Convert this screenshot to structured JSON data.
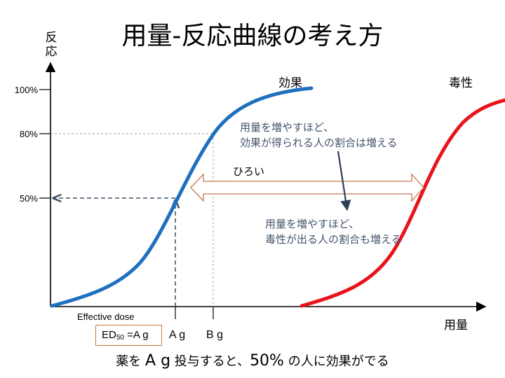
{
  "title": "用量-反応曲線の考え方",
  "axes": {
    "y_label": "反応",
    "x_label": "用量",
    "y_ticks": [
      "100%",
      "80%",
      "50%"
    ]
  },
  "curves": {
    "effect_label": "効果",
    "effect_color": "#1f6fbf",
    "toxicity_label": "毒性",
    "toxicity_color": "#e8141b"
  },
  "annotations": {
    "effect_note": "用量を増やすほど、\n効果が得られる人の割合は増える",
    "toxicity_note": "用量を増やすほど、\n毒性が出る人の割合も増える",
    "wide_label": "ひろい",
    "effective_dose": "Effective dose",
    "ed50_prefix": "ED",
    "ed50_sub": "50",
    "ed50_suffix": " =A g",
    "dose_a": "A g",
    "dose_b": "B g"
  },
  "footer": {
    "part1": "薬を ",
    "part2": "A g",
    "part3": " 投与すると、",
    "part4": "50%",
    "part5": " の人に効果がでる"
  },
  "chart_data": {
    "type": "line",
    "ylabel": "反応",
    "xlabel": "用量",
    "y_ticks": [
      "50%",
      "80%",
      "100%"
    ],
    "x_markers": [
      "A g",
      "B g"
    ],
    "series": [
      {
        "name": "効果",
        "shape": "sigmoid",
        "reference_points": [
          {
            "x": "A g",
            "y": 50
          },
          {
            "x": "B g",
            "y": 80
          }
        ]
      },
      {
        "name": "毒性",
        "shape": "sigmoid"
      }
    ]
  }
}
